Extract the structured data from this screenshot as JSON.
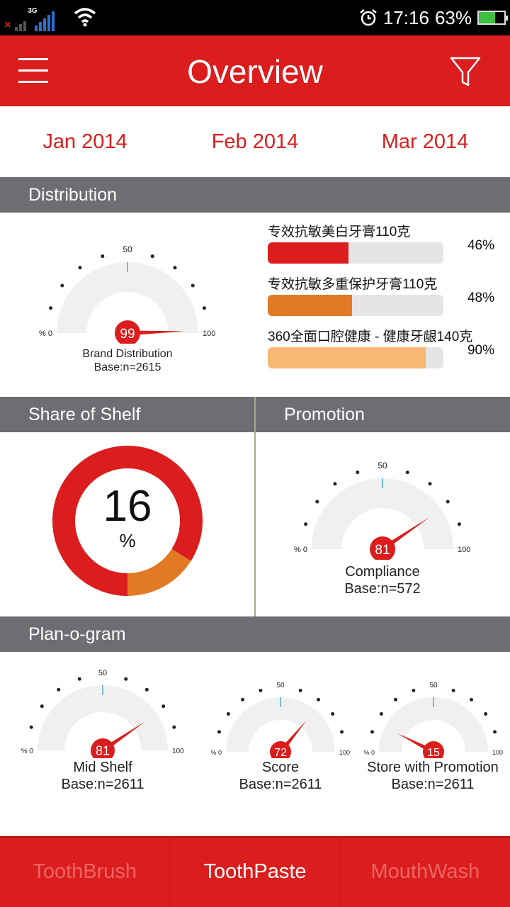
{
  "status_bar": {
    "network": "3G",
    "sim": "1",
    "time": "17:16",
    "battery_pct": "63%",
    "battery_level": 0.63
  },
  "app_bar": {
    "title": "Overview"
  },
  "months": [
    "Jan 2014",
    "Feb 2014",
    "Mar 2014"
  ],
  "gauge_ticks": {
    "min": "% 0",
    "mid": "50",
    "max": "100"
  },
  "distribution": {
    "header": "Distribution",
    "gauge": {
      "value": 99,
      "value_text": "99",
      "label": "Brand Distribution",
      "base": "Base:n=2615"
    },
    "bars": [
      {
        "name": "专效抗敏美白牙膏110克",
        "value": 0.46,
        "pct": "46%",
        "color": "#db1d1d"
      },
      {
        "name": "专效抗敏多重保护牙膏110克",
        "value": 0.48,
        "pct": "48%",
        "color": "#e27a25"
      },
      {
        "name": "360全面口腔健康 - 健康牙龈140克",
        "value": 0.9,
        "pct": "90%",
        "color": "#f8b875"
      }
    ]
  },
  "share_of_shelf": {
    "header": "Share of Shelf",
    "value": 16,
    "value_text": "16",
    "unit": "%",
    "colors": {
      "main": "#db1d1d",
      "share": "#e27a25"
    }
  },
  "promotion": {
    "header": "Promotion",
    "gauge": {
      "value": 81,
      "value_text": "81",
      "label": "Compliance",
      "base": "Base:n=572"
    }
  },
  "planogram": {
    "header": "Plan-o-gram",
    "gauges": [
      {
        "value": 81,
        "value_text": "81",
        "label": "Mid Shelf",
        "base": "Base:n=2611"
      },
      {
        "value": 72,
        "value_text": "72",
        "label": "Score",
        "base": "Base:n=2611"
      },
      {
        "value": 15,
        "value_text": "15",
        "label": "Store with Promotion",
        "base": "Base:n=2611"
      }
    ]
  },
  "bottom_tabs": [
    "ToothBrush",
    "ToothPaste",
    "MouthWash"
  ],
  "active_bottom_tab": "ToothPaste",
  "colors": {
    "accent": "#db1d1d",
    "header_gray": "#6d6d72",
    "gauge_track": "#f0f0f0",
    "tick_blue": "#4aa8e0"
  }
}
